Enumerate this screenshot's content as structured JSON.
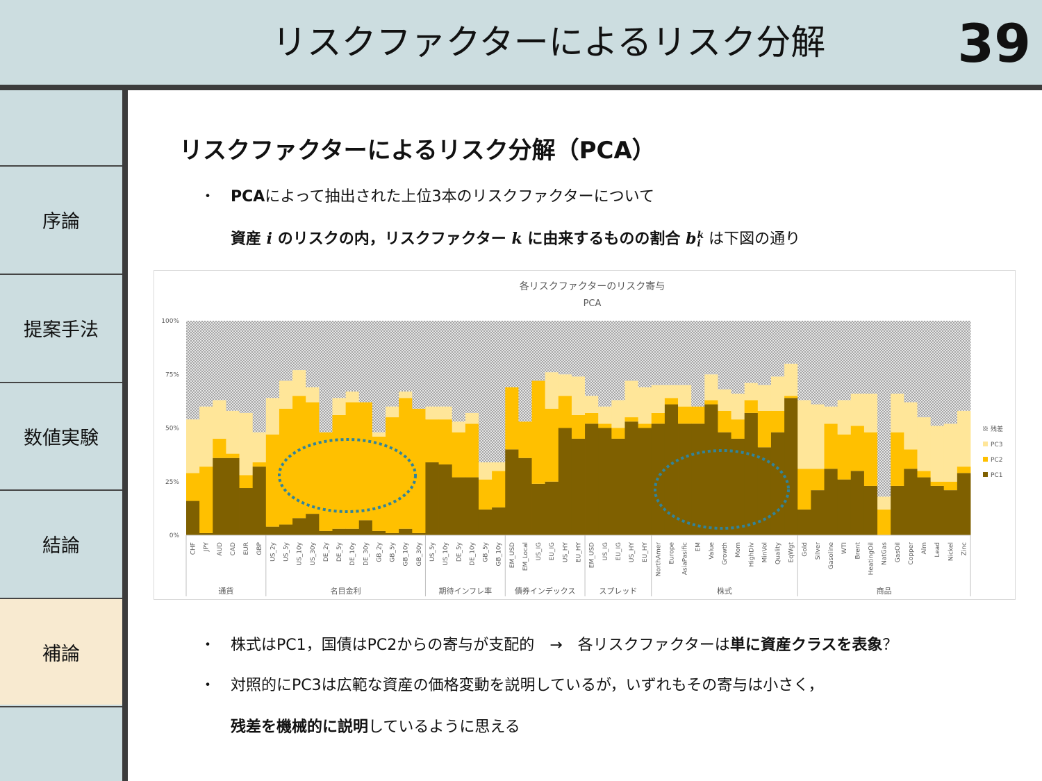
{
  "header": {
    "title": "リスクファクターによるリスク分解",
    "page_number": "39",
    "background": "#ccdde0"
  },
  "sidebar": {
    "items": [
      {
        "label": "序論",
        "active": false
      },
      {
        "label": "提案手法",
        "active": false
      },
      {
        "label": "数値実験",
        "active": false
      },
      {
        "label": "結論",
        "active": false
      },
      {
        "label": "補論",
        "active": true
      }
    ]
  },
  "slide": {
    "heading": "リスクファクターによるリスク分解（PCA）",
    "bullet_marker": "・",
    "intro": {
      "bold": "PCA",
      "rest": "によって抽出された上位3本のリスクファクターについて"
    },
    "def": {
      "p1": "資産 ",
      "i": "i",
      "p2": " のリスクの内，リスクファクター ",
      "k": "k",
      "p3": " に由来するものの割合 ",
      "b": "b",
      "sup": "k",
      "sub": "i",
      "p4": " は下図の通り"
    },
    "bullets": [
      {
        "t1": "株式はPC1，国債はPC2からの寄与が支配的　→　各リスクファクターは",
        "bold": "単に資産クラスを表象",
        "t2": "？"
      },
      {
        "t1": "対照的にPC3は広範な資産の価格変動を説明しているが，いずれもその寄与は小さく，"
      },
      {
        "bold": "残差を機械的に説明",
        "t2": "しているように思える"
      }
    ]
  },
  "chart_data": {
    "type": "bar",
    "stacked": true,
    "title": "各リスクファクターのリスク寄与",
    "subtitle": "PCA",
    "ylim": [
      0,
      100
    ],
    "yticks": [
      "0%",
      "25%",
      "50%",
      "75%",
      "100%"
    ],
    "legend_position": "right",
    "legend": [
      "残差",
      "PC3",
      "PC2",
      "PC1"
    ],
    "colors": {
      "PC1": "#7f6000",
      "PC2": "#ffc000",
      "PC3": "#ffe699",
      "residual": "#d0d0d0"
    },
    "categories": [
      "CHF",
      "JPY",
      "AUD",
      "CAD",
      "EUR",
      "GBP",
      "US_2y",
      "US_5y",
      "US_10y",
      "US_30y",
      "DE_2y",
      "DE_5y",
      "DE_10y",
      "DE_30y",
      "GB_2y",
      "GB_5y",
      "GB_10y",
      "GB_30y",
      "US_5y",
      "US_10y",
      "DE_5y",
      "DE_10y",
      "GB_5y",
      "GB_10y",
      "EM_USD",
      "EM_Local",
      "US_IG",
      "EU_IG",
      "US_HY",
      "EU_HY",
      "EM_USD",
      "US_IG",
      "EU_IG",
      "US_HY",
      "EU_HY",
      "NorthAmer",
      "Europe",
      "AsiaPasific",
      "EM",
      "Value",
      "Growth",
      "Mom",
      "HighDiv",
      "MinVol",
      "Quality",
      "EqWgt",
      "Gold",
      "Silver",
      "Gasoline",
      "WTI",
      "Brent",
      "HeatingOil",
      "NatGas",
      "GasOil",
      "Copper",
      "Alm",
      "Lead",
      "Nickel",
      "Zinc"
    ],
    "groups": [
      {
        "label": "通貨",
        "count": 6
      },
      {
        "label": "名目金利",
        "count": 12
      },
      {
        "label": "期待インフレ率",
        "count": 6
      },
      {
        "label": "債券インデックス",
        "count": 6
      },
      {
        "label": "スプレッド",
        "count": 5
      },
      {
        "label": "株式",
        "count": 11
      },
      {
        "label": "商品",
        "count": 13
      }
    ],
    "series": [
      {
        "name": "PC1",
        "values": [
          16,
          1,
          36,
          36,
          22,
          32,
          4,
          5,
          8,
          10,
          2,
          3,
          3,
          7,
          2,
          1,
          3,
          1,
          34,
          33,
          27,
          27,
          12,
          13,
          40,
          36,
          24,
          25,
          50,
          45,
          52,
          50,
          45,
          53,
          50,
          52,
          61,
          52,
          52,
          61,
          48,
          45,
          57,
          41,
          48,
          64,
          12,
          21,
          31,
          26,
          30,
          23,
          0,
          23,
          31,
          27,
          23,
          21,
          29
        ]
      },
      {
        "name": "PC2",
        "values": [
          13,
          31,
          9,
          2,
          6,
          2,
          43,
          54,
          57,
          52,
          46,
          53,
          59,
          55,
          44,
          54,
          61,
          58,
          20,
          21,
          21,
          25,
          14,
          17,
          29,
          17,
          48,
          34,
          15,
          11,
          5,
          2,
          5,
          2,
          2,
          5,
          3,
          8,
          8,
          2,
          10,
          9,
          6,
          17,
          10,
          1,
          19,
          10,
          21,
          21,
          21,
          25,
          12,
          25,
          9,
          3,
          2,
          4,
          3
        ]
      },
      {
        "name": "PC3",
        "values": [
          25,
          28,
          18,
          20,
          29,
          14,
          17,
          13,
          12,
          7,
          0,
          8,
          5,
          0,
          2,
          5,
          3,
          0,
          6,
          6,
          5,
          5,
          8,
          4,
          0,
          0,
          0,
          17,
          10,
          18,
          8,
          8,
          13,
          17,
          17,
          13,
          6,
          10,
          0,
          12,
          10,
          12,
          8,
          12,
          16,
          15,
          32,
          30,
          8,
          16,
          15,
          18,
          6,
          18,
          22,
          25,
          26,
          27,
          26
        ]
      },
      {
        "name": "残差",
        "values": [
          46,
          40,
          37,
          42,
          43,
          52,
          36,
          28,
          23,
          31,
          52,
          36,
          33,
          38,
          52,
          40,
          33,
          41,
          40,
          40,
          47,
          43,
          66,
          66,
          31,
          47,
          28,
          24,
          25,
          26,
          35,
          40,
          37,
          28,
          31,
          30,
          30,
          30,
          40,
          25,
          32,
          34,
          29,
          30,
          26,
          20,
          37,
          39,
          40,
          37,
          34,
          34,
          82,
          34,
          38,
          45,
          49,
          48,
          42
        ]
      }
    ]
  }
}
